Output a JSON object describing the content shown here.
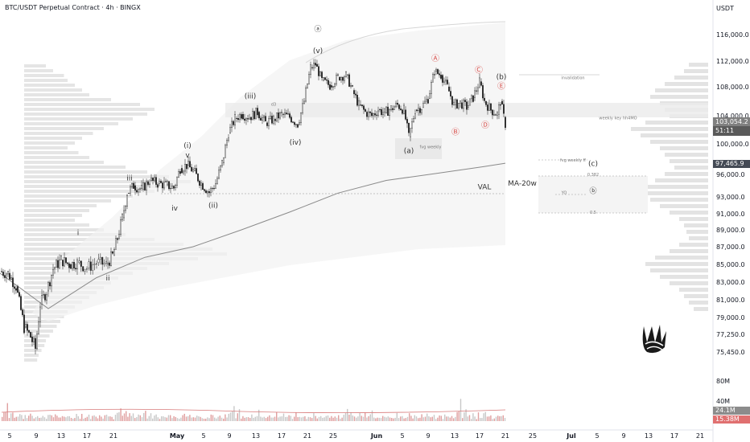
{
  "header": {
    "title": "BTC/USDT Perpetual Contract · 4h · BINGX",
    "currency": "USDT"
  },
  "price_tag": {
    "last": "103,054.2",
    "countdown": "51:11"
  },
  "current_tag": "97,465.9",
  "volume_tags": {
    "a": "24.1M",
    "b": "15.38M"
  },
  "colors": {
    "up": "#2b2b2b",
    "down": "#2b2b2b",
    "ma": "#8a8a8a",
    "profile": "#d0d0d0",
    "vol_up": "#c8c8c8",
    "vol_down": "#e0a0a0",
    "accent_red": "#d9534f"
  },
  "chart_data": {
    "type": "candlestick",
    "price_axis": {
      "ticks": [
        "116,000.0",
        "112,000.0",
        "108,000.0",
        "104,000.0",
        "100,000.0",
        "96,000.0",
        "93,000.0",
        "91,000.0",
        "89,000.0",
        "87,000.0",
        "85,000.0",
        "83,000.0",
        "81,000.0",
        "79,000.0",
        "77,250.0",
        "75,450.0"
      ],
      "values": [
        116000,
        112000,
        108000,
        104000,
        100000,
        96000,
        93000,
        91000,
        89000,
        87000,
        85000,
        83000,
        81000,
        79000,
        77250,
        75450
      ]
    },
    "time_axis": {
      "labels": [
        "5",
        "9",
        "13",
        "17",
        "21",
        "May",
        "5",
        "9",
        "13",
        "17",
        "21",
        "25",
        "Jun",
        "5",
        "9",
        "13",
        "17",
        "21",
        "25",
        "Jul",
        "5",
        "9",
        "13",
        "17",
        "21"
      ],
      "positions": [
        12,
        45,
        76,
        108,
        141,
        220,
        253,
        285,
        318,
        350,
        382,
        414,
        468,
        500,
        532,
        565,
        596,
        628,
        662,
        710,
        742,
        775,
        806,
        838,
        870
      ]
    },
    "volume_axis": {
      "ticks": [
        "80M",
        "40M"
      ],
      "values": [
        80,
        40
      ]
    },
    "close_path": [
      [
        0,
        84200
      ],
      [
        10,
        84000
      ],
      [
        20,
        82500
      ],
      [
        30,
        78000
      ],
      [
        38,
        77000
      ],
      [
        44,
        75800
      ],
      [
        50,
        80500
      ],
      [
        58,
        82000
      ],
      [
        66,
        84500
      ],
      [
        76,
        85500
      ],
      [
        86,
        85000
      ],
      [
        96,
        85200
      ],
      [
        108,
        84600
      ],
      [
        120,
        85200
      ],
      [
        132,
        85000
      ],
      [
        140,
        86000
      ],
      [
        146,
        88000
      ],
      [
        152,
        90500
      ],
      [
        158,
        93500
      ],
      [
        166,
        94500
      ],
      [
        176,
        94000
      ],
      [
        186,
        95200
      ],
      [
        196,
        94800
      ],
      [
        206,
        94600
      ],
      [
        216,
        94200
      ],
      [
        224,
        96800
      ],
      [
        232,
        97200
      ],
      [
        240,
        96500
      ],
      [
        250,
        94800
      ],
      [
        260,
        93600
      ],
      [
        268,
        94800
      ],
      [
        276,
        97500
      ],
      [
        284,
        101500
      ],
      [
        292,
        103600
      ],
      [
        300,
        104200
      ],
      [
        310,
        103800
      ],
      [
        320,
        104500
      ],
      [
        330,
        103000
      ],
      [
        340,
        103500
      ],
      [
        350,
        104200
      ],
      [
        360,
        103800
      ],
      [
        370,
        102800
      ],
      [
        378,
        106000
      ],
      [
        386,
        111000
      ],
      [
        392,
        111500
      ],
      [
        400,
        109000
      ],
      [
        410,
        108200
      ],
      [
        420,
        109500
      ],
      [
        430,
        109800
      ],
      [
        438,
        107500
      ],
      [
        446,
        105500
      ],
      [
        454,
        104500
      ],
      [
        462,
        104000
      ],
      [
        470,
        104800
      ],
      [
        478,
        104400
      ],
      [
        486,
        105000
      ],
      [
        494,
        105500
      ],
      [
        502,
        104800
      ],
      [
        508,
        101000
      ],
      [
        516,
        104800
      ],
      [
        524,
        105200
      ],
      [
        532,
        106400
      ],
      [
        540,
        110400
      ],
      [
        548,
        109800
      ],
      [
        556,
        108000
      ],
      [
        564,
        105500
      ],
      [
        572,
        105800
      ],
      [
        580,
        105200
      ],
      [
        588,
        106500
      ],
      [
        596,
        108800
      ],
      [
        602,
        106000
      ],
      [
        610,
        104800
      ],
      [
        618,
        104200
      ],
      [
        622,
        106000
      ],
      [
        626,
        103800
      ],
      [
        628,
        102800
      ]
    ],
    "ma_path": [
      [
        0,
        84000
      ],
      [
        60,
        80000
      ],
      [
        120,
        83500
      ],
      [
        180,
        85800
      ],
      [
        240,
        87000
      ],
      [
        300,
        89000
      ],
      [
        360,
        91200
      ],
      [
        420,
        93500
      ],
      [
        480,
        95200
      ],
      [
        540,
        96100
      ],
      [
        600,
        97000
      ],
      [
        628,
        97466
      ]
    ],
    "volume": [
      10,
      14,
      22,
      30,
      9,
      12,
      18,
      8,
      11,
      7,
      13,
      9,
      6,
      15,
      10,
      8,
      12,
      16,
      7,
      9,
      11,
      6,
      8,
      14,
      10,
      7,
      9,
      12,
      8,
      6,
      10,
      13,
      9,
      7,
      11,
      8,
      6,
      9,
      14,
      10,
      7,
      8,
      12,
      9,
      6,
      10,
      8,
      7,
      11,
      9,
      6,
      8,
      10,
      7,
      9,
      12,
      8,
      6,
      10,
      9,
      7,
      8,
      11,
      6
    ],
    "labels": [
      {
        "text": "ⓐ",
        "x": 395,
        "y": 116500
      },
      {
        "text": "(v)",
        "x": 395,
        "y": 113200
      },
      {
        "text": "(iii)",
        "x": 311,
        "y": 106400
      },
      {
        "text": "(i)",
        "x": 233,
        "y": 99500
      },
      {
        "text": "v",
        "x": 233,
        "y": 98200
      },
      {
        "text": "iii",
        "x": 161,
        "y": 95200
      },
      {
        "text": "iv",
        "x": 217,
        "y": 91400
      },
      {
        "text": "(ii)",
        "x": 265,
        "y": 91700
      },
      {
        "text": "(iv)",
        "x": 367,
        "y": 99900
      },
      {
        "text": "(a)",
        "x": 508,
        "y": 98800
      },
      {
        "text": "Ⓐ",
        "x": 541,
        "y": 112000
      },
      {
        "text": "Ⓑ",
        "x": 566,
        "y": 101300
      },
      {
        "text": "Ⓒ",
        "x": 595,
        "y": 110200
      },
      {
        "text": "Ⓓ",
        "x": 603,
        "y": 102300
      },
      {
        "text": "Ⓔ",
        "x": 623,
        "y": 107700
      },
      {
        "text": "(b)",
        "x": 623,
        "y": 109200
      },
      {
        "text": "(c)",
        "x": 737,
        "y": 97100
      },
      {
        "text": "ⓑ",
        "x": 737,
        "y": 93500
      },
      {
        "text": "i",
        "x": 97,
        "y": 88400
      },
      {
        "text": "ii",
        "x": 134,
        "y": 83200
      },
      {
        "text": "d3",
        "x": 340,
        "y": 105400
      },
      {
        "text": "VAL",
        "x": 602,
        "y": 94000
      },
      {
        "text": "MA-20w",
        "x": 649,
        "y": 94500
      },
      {
        "text": "fvg weekly",
        "x": 535,
        "y": 99400
      },
      {
        "text": "fvg weekly ff",
        "x": 712,
        "y": 97700
      },
      {
        "text": "invalidation",
        "x": 712,
        "y": 109200
      },
      {
        "text": "weekly key hh4MO",
        "x": 768,
        "y": 103500
      },
      {
        "text": "0.382",
        "x": 737,
        "y": 95800
      },
      {
        "text": "YO",
        "x": 701,
        "y": 93400
      },
      {
        "text": "0.5",
        "x": 737,
        "y": 91000
      }
    ]
  }
}
